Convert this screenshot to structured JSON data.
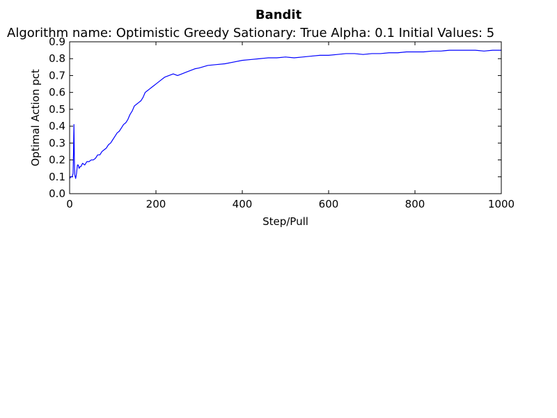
{
  "chart_data": {
    "type": "line",
    "title": "Bandit",
    "subtitle": "Algorithm name: Optimistic Greedy Sationary: True Alpha: 0.1  Initial Values: 5",
    "xlabel": "Step/Pull",
    "ylabel": "Optimal Action pct",
    "xlim": [
      0,
      1000
    ],
    "ylim": [
      0,
      0.9
    ],
    "xticks": [
      0,
      200,
      400,
      600,
      800,
      1000
    ],
    "yticks": [
      0.0,
      0.1,
      0.2,
      0.3,
      0.4,
      0.5,
      0.6,
      0.7,
      0.8,
      0.9
    ],
    "xtick_labels": [
      "0",
      "200",
      "400",
      "600",
      "800",
      "1000"
    ],
    "ytick_labels": [
      "0.0",
      "0.1",
      "0.2",
      "0.3",
      "0.4",
      "0.5",
      "0.6",
      "0.7",
      "0.8",
      "0.9"
    ],
    "grid": false,
    "line_color": "#0000ff",
    "series": [
      {
        "x": [
          0,
          3,
          6,
          8,
          9,
          10,
          11,
          12,
          14,
          16,
          18,
          20,
          22,
          24,
          26,
          28,
          30,
          35,
          40,
          45,
          50,
          55,
          60,
          65,
          70,
          75,
          80,
          85,
          90,
          95,
          100,
          105,
          110,
          115,
          120,
          125,
          130,
          135,
          140,
          145,
          150,
          155,
          160,
          165,
          170,
          175,
          180,
          185,
          190,
          195,
          200,
          210,
          220,
          230,
          240,
          250,
          260,
          270,
          280,
          290,
          300,
          320,
          340,
          360,
          380,
          400,
          420,
          440,
          460,
          480,
          500,
          520,
          540,
          560,
          580,
          600,
          620,
          640,
          660,
          680,
          700,
          720,
          740,
          760,
          780,
          800,
          820,
          840,
          860,
          880,
          900,
          920,
          940,
          960,
          980,
          1000
        ],
        "y": [
          0.09,
          0.1,
          0.1,
          0.12,
          0.25,
          0.41,
          0.2,
          0.11,
          0.09,
          0.12,
          0.17,
          0.17,
          0.15,
          0.16,
          0.16,
          0.17,
          0.18,
          0.17,
          0.19,
          0.19,
          0.2,
          0.2,
          0.21,
          0.23,
          0.23,
          0.25,
          0.26,
          0.27,
          0.29,
          0.3,
          0.32,
          0.34,
          0.36,
          0.37,
          0.39,
          0.41,
          0.42,
          0.44,
          0.47,
          0.49,
          0.52,
          0.53,
          0.54,
          0.55,
          0.57,
          0.6,
          0.61,
          0.62,
          0.63,
          0.64,
          0.65,
          0.67,
          0.69,
          0.7,
          0.71,
          0.7,
          0.71,
          0.72,
          0.73,
          0.74,
          0.745,
          0.76,
          0.765,
          0.77,
          0.78,
          0.79,
          0.795,
          0.8,
          0.805,
          0.805,
          0.81,
          0.805,
          0.81,
          0.815,
          0.82,
          0.82,
          0.825,
          0.83,
          0.83,
          0.825,
          0.83,
          0.83,
          0.835,
          0.835,
          0.84,
          0.84,
          0.84,
          0.845,
          0.845,
          0.85,
          0.85,
          0.85,
          0.85,
          0.845,
          0.85,
          0.85
        ]
      }
    ]
  }
}
